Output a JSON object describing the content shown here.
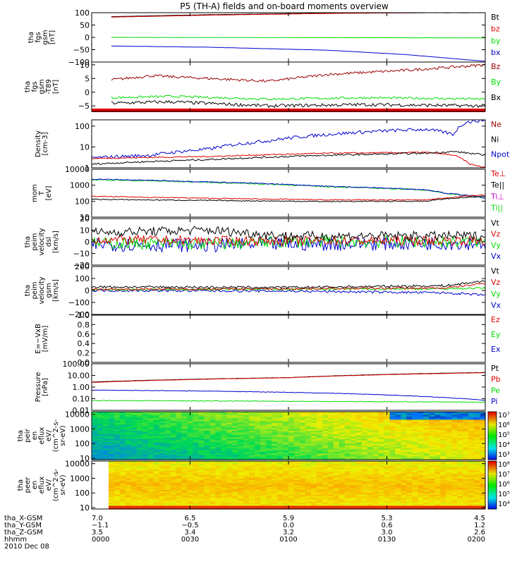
{
  "title": "P5 (TH-A) fields and on-board moments overview",
  "colors": {
    "black": "#000000",
    "red": "#dd0000",
    "darkred": "#990000",
    "green": "#00dd00",
    "blue": "#0000cc",
    "magenta": "#cc00cc"
  },
  "chart_data": [
    {
      "type": "line",
      "ylabel": [
        "tha",
        "fgs",
        "gsm",
        "[nT]"
      ],
      "ylim": [
        -100,
        100
      ],
      "ticks": [
        {
          "v": 100,
          "t": "100"
        },
        {
          "v": 50,
          "t": "50"
        },
        {
          "v": 0,
          "t": "0"
        },
        {
          "v": -50,
          "t": "−50"
        },
        {
          "v": -100,
          "t": "−100"
        }
      ],
      "legend": [
        {
          "name": "Bt",
          "color": "black"
        },
        {
          "name": "bz",
          "color": "red"
        },
        {
          "name": "by",
          "color": "green"
        },
        {
          "name": "bx",
          "color": "blue"
        }
      ],
      "series": [
        {
          "name": "Bt",
          "color": "black",
          "noise": 0.3,
          "x": [
            0.05,
            0.3,
            0.6,
            0.85,
            1.0
          ],
          "y": [
            84,
            92,
            98,
            100,
            100
          ]
        },
        {
          "name": "bz",
          "color": "red",
          "noise": 0.3,
          "x": [
            0.05,
            0.3,
            0.6,
            0.85,
            1.0
          ],
          "y": [
            82,
            90,
            97,
            100,
            100
          ]
        },
        {
          "name": "by",
          "color": "green",
          "noise": 0.3,
          "x": [
            0.05,
            0.5,
            1.0
          ],
          "y": [
            0,
            -1,
            -2
          ]
        },
        {
          "name": "bx",
          "color": "blue",
          "noise": 0.3,
          "x": [
            0.05,
            0.3,
            0.6,
            0.8,
            1.0
          ],
          "y": [
            -35,
            -40,
            -52,
            -70,
            -97
          ]
        }
      ]
    },
    {
      "type": "line",
      "ylabel": [
        "tha",
        "fgs",
        "gsm",
        "-T89",
        "[nT]"
      ],
      "ylim": [
        -7,
        11
      ],
      "ticks": [
        {
          "v": 10,
          "t": "10"
        },
        {
          "v": 5,
          "t": "5"
        },
        {
          "v": 0,
          "t": "0"
        },
        {
          "v": -5,
          "t": "−5"
        }
      ],
      "legend": [
        {
          "name": "Bz",
          "color": "darkred"
        },
        {
          "name": "By",
          "color": "green"
        },
        {
          "name": "Bx",
          "color": "black"
        }
      ],
      "bar": {
        "y": -6.5,
        "color": "red"
      },
      "series": [
        {
          "name": "Bz",
          "color": "darkred",
          "noise": 0.5,
          "x": [
            0.05,
            0.15,
            0.3,
            0.45,
            0.6,
            0.8,
            1.0
          ],
          "y": [
            4.5,
            6,
            5,
            4,
            6.5,
            8,
            10
          ]
        },
        {
          "name": "By",
          "color": "green",
          "noise": 0.4,
          "x": [
            0.05,
            0.2,
            0.45,
            0.7,
            1.0
          ],
          "y": [
            -2,
            -1.5,
            -2.5,
            -2,
            -2.5
          ]
        },
        {
          "name": "Bx",
          "color": "black",
          "noise": 0.6,
          "x": [
            0.05,
            0.2,
            0.45,
            0.7,
            1.0
          ],
          "y": [
            -4,
            -3.5,
            -5,
            -4.5,
            -5
          ]
        }
      ]
    },
    {
      "type": "line",
      "yscale": "log",
      "ylabel": [
        "Density",
        "[cm-3]"
      ],
      "ylim": [
        1,
        200
      ],
      "ticks": [
        {
          "v": 100,
          "t": "100"
        },
        {
          "v": 10,
          "t": "10"
        },
        {
          "v": 1,
          "t": "1"
        }
      ],
      "legend": [
        {
          "name": "Ne",
          "color": "darkred"
        },
        {
          "name": "Ni",
          "color": "black"
        },
        {
          "name": "Npot",
          "color": "blue"
        }
      ],
      "series": [
        {
          "name": "Npot",
          "color": "blue",
          "noise": 0.08,
          "x": [
            0.0,
            0.15,
            0.3,
            0.45,
            0.6,
            0.75,
            0.85,
            0.92,
            0.95,
            1.0
          ],
          "y": [
            3,
            4,
            8,
            20,
            40,
            60,
            70,
            40,
            150,
            200
          ]
        },
        {
          "name": "Ne",
          "color": "red",
          "noise": 0.03,
          "x": [
            0.0,
            0.3,
            0.6,
            0.85,
            0.92,
            0.96,
            1.0
          ],
          "y": [
            2.8,
            3.5,
            5,
            5.5,
            4,
            1.5,
            1.0
          ]
        },
        {
          "name": "Ni",
          "color": "black",
          "noise": 0.04,
          "x": [
            0.0,
            0.3,
            0.6,
            0.85,
            0.92,
            1.0
          ],
          "y": [
            1.5,
            2.5,
            4,
            5,
            6,
            4
          ]
        }
      ]
    },
    {
      "type": "line",
      "yscale": "log",
      "ylabel": [
        "mom",
        "T",
        "[eV]"
      ],
      "ylim": [
        10,
        10000
      ],
      "ticks": [
        {
          "v": 10000,
          "t": "10000"
        },
        {
          "v": 1000,
          "t": "1000"
        },
        {
          "v": 100,
          "t": "100"
        },
        {
          "v": 10,
          "t": "10"
        }
      ],
      "legend": [
        {
          "name": "Te⊥",
          "color": "red"
        },
        {
          "name": "Te||",
          "color": "black"
        },
        {
          "name": "Ti⊥",
          "color": "magenta"
        },
        {
          "name": "Ti||",
          "color": "green"
        }
      ],
      "series": [
        {
          "name": "Ti||",
          "color": "green",
          "noise": 0.04,
          "x": [
            0.0,
            0.3,
            0.6,
            0.85,
            0.9,
            1.0
          ],
          "y": [
            2200,
            1500,
            800,
            500,
            300,
            150
          ]
        },
        {
          "name": "Ti⊥",
          "color": "blue",
          "noise": 0.03,
          "x": [
            0.0,
            0.3,
            0.6,
            0.85,
            0.9,
            1.0
          ],
          "y": [
            2400,
            1600,
            850,
            520,
            310,
            160
          ]
        },
        {
          "name": "Te⊥",
          "color": "red",
          "noise": 0.03,
          "x": [
            0.0,
            0.3,
            0.6,
            0.85,
            0.9,
            1.0
          ],
          "y": [
            200,
            150,
            120,
            120,
            160,
            250
          ]
        },
        {
          "name": "Te||",
          "color": "black",
          "noise": 0.03,
          "x": [
            0.0,
            0.3,
            0.6,
            0.85,
            0.9,
            1.0
          ],
          "y": [
            130,
            110,
            95,
            100,
            140,
            200
          ]
        }
      ]
    },
    {
      "type": "line",
      "ylabel": [
        "tha",
        "peim",
        "velocity",
        "dsl",
        "[km/s]"
      ],
      "ylim": [
        -20,
        20
      ],
      "ticks": [
        {
          "v": 20,
          "t": "20"
        },
        {
          "v": 10,
          "t": "10"
        },
        {
          "v": 0,
          "t": "0"
        },
        {
          "v": -10,
          "t": "−10"
        },
        {
          "v": -20,
          "t": "−20"
        }
      ],
      "legend": [
        {
          "name": "Vt",
          "color": "black"
        },
        {
          "name": "Vz",
          "color": "red"
        },
        {
          "name": "Vy",
          "color": "green"
        },
        {
          "name": "Vx",
          "color": "blue"
        }
      ],
      "series": [
        {
          "name": "Vx",
          "color": "blue",
          "noise": 6,
          "x": [
            0.0,
            0.3,
            0.5,
            1.0
          ],
          "y": [
            -2,
            -3,
            -2,
            -1
          ]
        },
        {
          "name": "Vy",
          "color": "green",
          "noise": 5,
          "x": [
            0.0,
            0.3,
            0.5,
            1.0
          ],
          "y": [
            -1,
            -2,
            0,
            0
          ]
        },
        {
          "name": "Vz",
          "color": "red",
          "noise": 4,
          "x": [
            0.0,
            0.3,
            0.5,
            1.0
          ],
          "y": [
            2,
            1,
            1,
            1
          ]
        },
        {
          "name": "Vt",
          "color": "black",
          "noise": 4,
          "x": [
            0.0,
            0.3,
            0.5,
            1.0
          ],
          "y": [
            8,
            10,
            5,
            5
          ]
        }
      ]
    },
    {
      "type": "line",
      "ylabel": [
        "tha",
        "peim",
        "velocity",
        "gsm",
        "[km/s]"
      ],
      "ylim": [
        -200,
        200
      ],
      "ticks": [
        {
          "v": 200,
          "t": "200"
        },
        {
          "v": 100,
          "t": "100"
        },
        {
          "v": 0,
          "t": "0"
        },
        {
          "v": -100,
          "t": "−100"
        },
        {
          "v": -200,
          "t": "−200"
        }
      ],
      "legend": [
        {
          "name": "Vt",
          "color": "black"
        },
        {
          "name": "Vz",
          "color": "red"
        },
        {
          "name": "Vy",
          "color": "green"
        },
        {
          "name": "Vx",
          "color": "blue"
        }
      ],
      "series": [
        {
          "name": "Vx",
          "color": "blue",
          "noise": 10,
          "x": [
            0.0,
            0.5,
            0.9,
            1.0
          ],
          "y": [
            0,
            -5,
            -20,
            -40
          ]
        },
        {
          "name": "Vy",
          "color": "green",
          "noise": 8,
          "x": [
            0.0,
            0.5,
            0.9,
            1.0
          ],
          "y": [
            5,
            10,
            15,
            20
          ]
        },
        {
          "name": "Vz",
          "color": "red",
          "noise": 8,
          "x": [
            0.0,
            0.5,
            0.9,
            1.0
          ],
          "y": [
            10,
            15,
            20,
            60
          ]
        },
        {
          "name": "Vt",
          "color": "black",
          "noise": 10,
          "x": [
            0.0,
            0.5,
            0.9,
            1.0
          ],
          "y": [
            30,
            25,
            40,
            80
          ]
        }
      ]
    },
    {
      "type": "line",
      "ylabel": [
        "E=−VxB",
        "[mV/m]"
      ],
      "ylim": [
        0,
        1
      ],
      "ticks": [
        {
          "v": 1,
          "t": "1.0"
        },
        {
          "v": 0.8,
          "t": "0.8"
        },
        {
          "v": 0.6,
          "t": "0.6"
        },
        {
          "v": 0.4,
          "t": "0.4"
        },
        {
          "v": 0.2,
          "t": "0.2"
        },
        {
          "v": 0,
          "t": "0.0"
        }
      ],
      "legend": [
        {
          "name": "Ez",
          "color": "red"
        },
        {
          "name": "Ey",
          "color": "green"
        },
        {
          "name": "Ex",
          "color": "blue"
        }
      ],
      "series": []
    },
    {
      "type": "line",
      "yscale": "log",
      "ylabel": [
        "Pressure",
        "[nPa]"
      ],
      "ylim": [
        0.01,
        100
      ],
      "ticks": [
        {
          "v": 100,
          "t": "100.00"
        },
        {
          "v": 10,
          "t": "10.00"
        },
        {
          "v": 1,
          "t": "1.00"
        },
        {
          "v": 0.1,
          "t": "0.10"
        },
        {
          "v": 0.01,
          "t": "0.01"
        }
      ],
      "legend": [
        {
          "name": "Pt",
          "color": "black"
        },
        {
          "name": "Pb",
          "color": "red"
        },
        {
          "name": "Pe",
          "color": "green"
        },
        {
          "name": "Pi",
          "color": "blue"
        }
      ],
      "series": [
        {
          "name": "Pt",
          "color": "black",
          "noise": 0.01,
          "x": [
            0.0,
            0.5,
            1.0
          ],
          "y": [
            2.7,
            6.5,
            18
          ]
        },
        {
          "name": "Pb",
          "color": "red",
          "noise": 0.01,
          "x": [
            0.0,
            0.5,
            1.0
          ],
          "y": [
            2.5,
            6.3,
            17
          ]
        },
        {
          "name": "Pi",
          "color": "blue",
          "noise": 0.02,
          "x": [
            0.0,
            0.3,
            0.6,
            0.85,
            1.0
          ],
          "y": [
            0.55,
            0.45,
            0.3,
            0.15,
            0.07
          ]
        },
        {
          "name": "Pe",
          "color": "green",
          "noise": 0.03,
          "x": [
            0.0,
            0.5,
            1.0
          ],
          "y": [
            0.07,
            0.06,
            0.05
          ]
        }
      ]
    },
    {
      "type": "heatmap",
      "yscale": "log",
      "ylabel": [
        "tha",
        "peir",
        "en",
        "eflux",
        "eV/",
        "(cm^2-s-",
        "sr-eV)"
      ],
      "ylim": [
        8,
        15000
      ],
      "ticks": [
        {
          "v": 10000,
          "t": "10000"
        },
        {
          "v": 1000,
          "t": "1000"
        },
        {
          "v": 100,
          "t": "100"
        },
        {
          "v": 10,
          "t": "10"
        }
      ],
      "colorbar": {
        "min": 3,
        "max": 7,
        "labels": [
          "10⁷",
          "10⁶",
          "10⁵",
          "10⁴",
          "10³"
        ]
      },
      "variant": "ions"
    },
    {
      "type": "heatmap",
      "yscale": "log",
      "ylabel": [
        "tha",
        "peer",
        "en",
        "eflux",
        "eV/",
        "(cm^2-s-",
        "sr-eV)"
      ],
      "ylim": [
        8,
        15000
      ],
      "ticks": [
        {
          "v": 10000,
          "t": "10000"
        },
        {
          "v": 1000,
          "t": "1000"
        },
        {
          "v": 100,
          "t": "100"
        },
        {
          "v": 10,
          "t": "10"
        }
      ],
      "colorbar": {
        "min": 4,
        "max": 8,
        "labels": [
          "10⁸",
          "10⁷",
          "10⁶",
          "10⁵",
          "10⁴"
        ]
      },
      "variant": "electrons",
      "gap_end": 0.03
    }
  ],
  "x_axis": {
    "rows": [
      {
        "label": "tha_X-GSM",
        "values": [
          "7.0",
          "6.5",
          "5.9",
          "5.3",
          "4.5"
        ]
      },
      {
        "label": "tha_Y-GSM",
        "values": [
          "−1.1",
          "−0.5",
          "0.0",
          "0.6",
          "1.2"
        ]
      },
      {
        "label": "tha_Z-GSM",
        "values": [
          "3.5",
          "3.4",
          "3.2",
          "3.0",
          "2.6"
        ]
      },
      {
        "label": "hhmm",
        "values": [
          "0000",
          "0030",
          "0100",
          "0130",
          "0200"
        ]
      }
    ],
    "date": "2010 Dec 08"
  }
}
